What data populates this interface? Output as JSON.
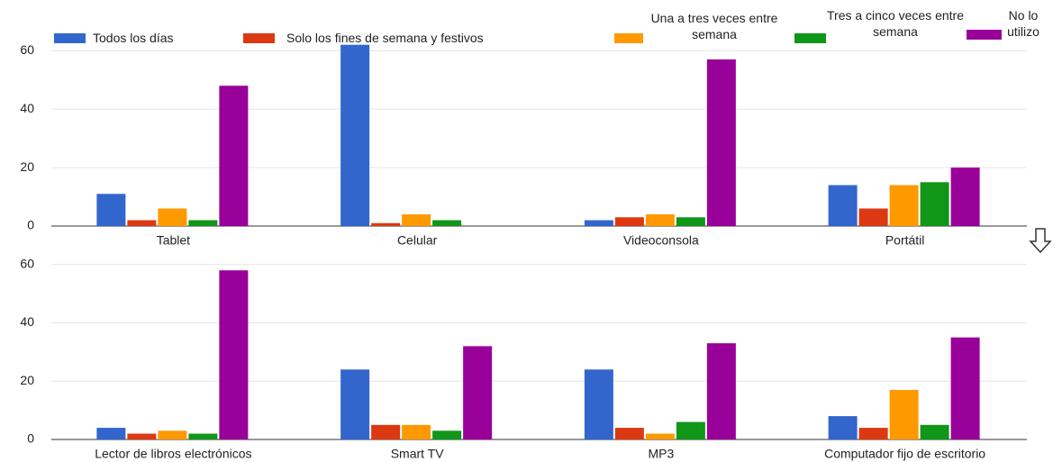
{
  "chart_data": [
    {
      "type": "bar",
      "categories": [
        "Tablet",
        "Celular",
        "Videoconsola",
        "Portátil"
      ],
      "series": [
        {
          "name": "Todos los días",
          "color": "#3366cc",
          "values": [
            11,
            62,
            2,
            14
          ]
        },
        {
          "name": "Solo los fines de semana y festivos",
          "color": "#dc3912",
          "values": [
            2,
            1,
            3,
            6
          ]
        },
        {
          "name": "Una a tres veces entre semana",
          "color": "#ff9900",
          "values": [
            6,
            4,
            4,
            14
          ]
        },
        {
          "name": "Tres a cinco veces entre semana",
          "color": "#109618",
          "values": [
            2,
            2,
            3,
            15
          ]
        },
        {
          "name": "No lo utilizo",
          "color": "#990099",
          "values": [
            48,
            0,
            57,
            20
          ]
        }
      ],
      "ylim": [
        0,
        65
      ],
      "yticks": [
        0,
        20,
        40,
        60
      ],
      "grid": true,
      "legend": "top"
    },
    {
      "type": "bar",
      "categories": [
        "Lector de libros electrónicos",
        "Smart TV",
        "MP3",
        "Computador fijo de escritorio"
      ],
      "series": [
        {
          "color": "#3366cc",
          "values": [
            4,
            24,
            24,
            8
          ]
        },
        {
          "color": "#dc3912",
          "values": [
            2,
            5,
            4,
            4
          ]
        },
        {
          "color": "#ff9900",
          "values": [
            3,
            5,
            2,
            17
          ]
        },
        {
          "color": "#109618",
          "values": [
            2,
            3,
            6,
            5
          ]
        },
        {
          "color": "#990099",
          "values": [
            58,
            32,
            33,
            35
          ]
        }
      ],
      "ylim": [
        0,
        63
      ],
      "yticks": [
        0,
        20,
        40,
        60
      ],
      "grid": true
    }
  ]
}
